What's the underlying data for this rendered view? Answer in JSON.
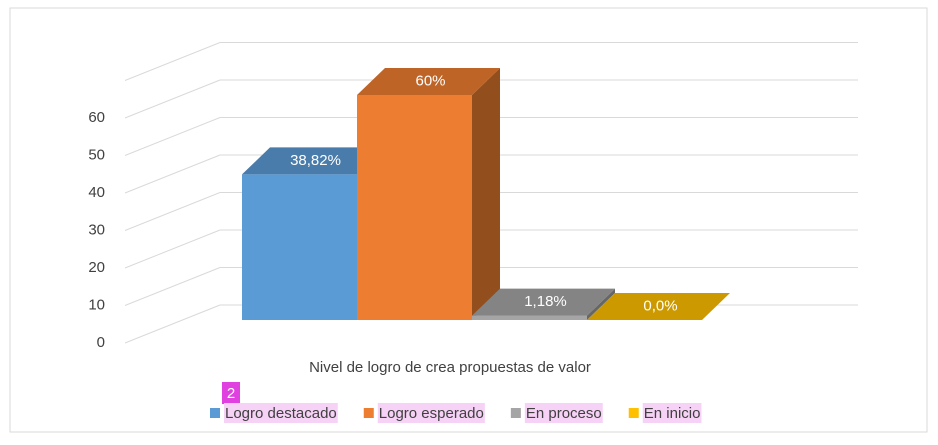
{
  "chart_data": {
    "type": "bar3d",
    "x_label": "Nivel de logro de crea propuestas de valor",
    "annotation": "2",
    "ylim": [
      0,
      70
    ],
    "yticks": [
      0,
      10,
      20,
      30,
      40,
      50,
      60
    ],
    "grid": true,
    "legend": "bottom",
    "series": [
      {
        "name": "Logro destacado",
        "color": "#5b9bd5",
        "values": [
          38.82
        ],
        "value_labels": [
          "38,82%"
        ]
      },
      {
        "name": "Logro esperado",
        "color": "#ed7d31",
        "values": [
          60
        ],
        "value_labels": [
          "60%"
        ]
      },
      {
        "name": "En proceso",
        "color": "#a5a5a5",
        "values": [
          1.18
        ],
        "value_labels": [
          "1,18%"
        ]
      },
      {
        "name": "En inicio",
        "color": "#ffc000",
        "values": [
          0.0
        ],
        "value_labels": [
          "0,0%"
        ]
      }
    ]
  }
}
